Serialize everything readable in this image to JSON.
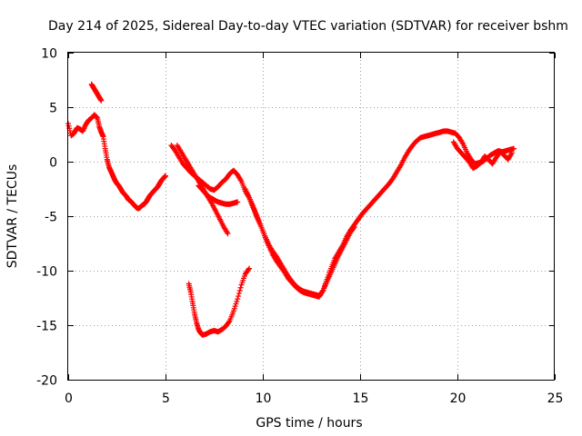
{
  "chart_data": {
    "type": "scatter",
    "title": "Day 214 of 2025, Sidereal Day-to-day VTEC variation (SDTVAR) for receiver bshm",
    "xlabel": "GPS time / hours",
    "ylabel": "SDTVAR / TECUs",
    "xlim": [
      0,
      25
    ],
    "ylim": [
      -20,
      10
    ],
    "xticks": [
      "0",
      "5",
      "10",
      "15",
      "20",
      "25"
    ],
    "yticks": [
      "10",
      "5",
      "0",
      "-5",
      "-10",
      "-15",
      "-20"
    ],
    "grid": true,
    "marker": "+",
    "series": [
      {
        "name": "SDTVAR",
        "color": "#ff0000",
        "tracks": [
          {
            "x": [
              0.0,
              0.15,
              0.3,
              0.45,
              0.6,
              0.75,
              0.9,
              1.05,
              1.2,
              1.35,
              1.5,
              1.6,
              1.7,
              1.8,
              1.9,
              2.0,
              2.1,
              2.2,
              2.3,
              2.4,
              2.5,
              2.6,
              2.7,
              2.8,
              2.9,
              3.0,
              3.1,
              3.2,
              3.3,
              3.4,
              3.5,
              3.6,
              3.7,
              3.8,
              3.9,
              4.0,
              4.1,
              4.2,
              4.3,
              4.4,
              4.5,
              4.6,
              4.7,
              4.8,
              4.9,
              5.0
            ],
            "y": [
              3.5,
              2.4,
              2.6,
              3.1,
              3.0,
              2.8,
              3.4,
              3.8,
              4.0,
              4.3,
              4.0,
              3.2,
              2.7,
              2.3,
              1.2,
              0.2,
              -0.5,
              -0.9,
              -1.3,
              -1.7,
              -2.0,
              -2.2,
              -2.5,
              -2.8,
              -3.0,
              -3.2,
              -3.5,
              -3.6,
              -3.8,
              -4.0,
              -4.2,
              -4.3,
              -4.2,
              -4.0,
              -3.9,
              -3.7,
              -3.4,
              -3.1,
              -2.9,
              -2.7,
              -2.5,
              -2.3,
              -2.0,
              -1.7,
              -1.5,
              -1.3
            ]
          },
          {
            "x": [
              1.2,
              1.3,
              1.4,
              1.5,
              1.6,
              1.7
            ],
            "y": [
              7.1,
              6.8,
              6.5,
              6.2,
              5.9,
              5.6
            ]
          },
          {
            "x": [
              5.3,
              5.5,
              5.7,
              5.9,
              6.1,
              6.3,
              6.5,
              6.7,
              6.9,
              7.1,
              7.3,
              7.5,
              7.7,
              7.9,
              8.1,
              8.3,
              8.5,
              8.7,
              8.9,
              9.1,
              9.3,
              9.5,
              9.7,
              9.9,
              10.1,
              10.3,
              10.5,
              10.7,
              10.9,
              11.1,
              11.3,
              11.5,
              11.7,
              11.9,
              12.1,
              12.3,
              12.5,
              12.7,
              12.9,
              13.1,
              13.3,
              13.5,
              13.7,
              13.9,
              14.1,
              14.3,
              14.5,
              14.7,
              14.9,
              15.1,
              15.3,
              15.5,
              15.7,
              15.9,
              16.1,
              16.3,
              16.5,
              16.7,
              16.9,
              17.1,
              17.3,
              17.5,
              17.7,
              17.9,
              18.1,
              18.3,
              18.5,
              18.7,
              18.9,
              19.1,
              19.3,
              19.5,
              19.7,
              19.9,
              20.1,
              20.3,
              20.5,
              20.7,
              20.9,
              21.1,
              21.3,
              21.5,
              21.7,
              21.9,
              22.1,
              22.3,
              22.5,
              22.7,
              22.9
            ],
            "y": [
              1.5,
              1.0,
              0.4,
              -0.2,
              -0.6,
              -1.0,
              -1.3,
              -1.6,
              -1.9,
              -2.2,
              -2.5,
              -2.6,
              -2.3,
              -1.9,
              -1.6,
              -1.1,
              -0.8,
              -1.2,
              -1.8,
              -2.7,
              -3.3,
              -4.1,
              -5.0,
              -5.9,
              -6.8,
              -7.7,
              -8.5,
              -9.1,
              -9.6,
              -10.1,
              -10.7,
              -11.1,
              -11.5,
              -11.8,
              -12.0,
              -12.1,
              -12.2,
              -12.3,
              -12.4,
              -11.8,
              -10.8,
              -9.8,
              -8.9,
              -8.3,
              -7.7,
              -6.9,
              -6.3,
              -5.8,
              -5.3,
              -4.8,
              -4.4,
              -4.0,
              -3.6,
              -3.2,
              -2.8,
              -2.4,
              -2.0,
              -1.5,
              -0.9,
              -0.3,
              0.4,
              1.0,
              1.5,
              1.9,
              2.2,
              2.3,
              2.4,
              2.5,
              2.6,
              2.7,
              2.8,
              2.8,
              2.7,
              2.6,
              2.2,
              1.6,
              0.8,
              0.2,
              -0.2,
              -0.1,
              0.0,
              0.3,
              0.6,
              0.8,
              1.0,
              0.9,
              1.0,
              1.1,
              1.2
            ]
          },
          {
            "x": [
              5.6,
              5.8,
              6.0,
              6.2,
              6.4,
              6.6,
              6.8,
              7.0,
              7.2,
              7.4,
              7.6,
              7.8,
              8.0,
              8.2
            ],
            "y": [
              1.5,
              0.9,
              0.3,
              -0.3,
              -0.9,
              -1.5,
              -2.1,
              -2.7,
              -3.3,
              -3.9,
              -4.6,
              -5.3,
              -6.0,
              -6.6
            ]
          },
          {
            "x": [
              6.7,
              6.9,
              7.1,
              7.3,
              7.5,
              7.7,
              7.9,
              8.1,
              8.3,
              8.5,
              8.7
            ],
            "y": [
              -2.2,
              -2.6,
              -3.0,
              -3.3,
              -3.5,
              -3.7,
              -3.8,
              -3.9,
              -3.9,
              -3.8,
              -3.7
            ]
          },
          {
            "x": [
              9.1,
              9.3,
              9.5,
              9.7,
              9.9,
              10.1,
              10.3,
              10.5,
              10.7,
              10.9,
              11.1,
              11.3,
              11.5,
              11.7,
              11.9,
              12.1,
              12.3,
              12.5,
              12.7,
              12.9,
              13.1,
              13.3,
              13.5,
              13.7,
              13.9,
              14.1,
              14.3,
              14.5,
              14.7
            ],
            "y": [
              -2.5,
              -3.3,
              -4.2,
              -5.1,
              -5.9,
              -6.8,
              -7.6,
              -8.2,
              -8.7,
              -9.3,
              -9.9,
              -10.5,
              -11.0,
              -11.4,
              -11.7,
              -11.9,
              -12.0,
              -12.1,
              -12.2,
              -12.3,
              -11.8,
              -11.0,
              -10.2,
              -9.4,
              -8.6,
              -7.9,
              -7.2,
              -6.5,
              -6.0
            ]
          },
          {
            "x": [
              6.2,
              6.3,
              6.4,
              6.5,
              6.6,
              6.7,
              6.8,
              6.9,
              7.1,
              7.3,
              7.5,
              7.7,
              7.9,
              8.1,
              8.3,
              8.5,
              8.7,
              8.9,
              9.1,
              9.3
            ],
            "y": [
              -11.2,
              -12.0,
              -13.0,
              -14.0,
              -14.8,
              -15.4,
              -15.7,
              -15.9,
              -15.8,
              -15.6,
              -15.5,
              -15.6,
              -15.4,
              -15.1,
              -14.6,
              -13.7,
              -12.6,
              -11.3,
              -10.3,
              -9.8
            ]
          },
          {
            "x": [
              19.8,
              20.0,
              20.2,
              20.4,
              20.6,
              20.8,
              21.0,
              21.2,
              21.4,
              21.6,
              21.8,
              22.0,
              22.2,
              22.4,
              22.6,
              22.8
            ],
            "y": [
              1.8,
              1.2,
              0.8,
              0.4,
              0.0,
              -0.6,
              -0.4,
              -0.1,
              0.5,
              0.2,
              -0.2,
              0.4,
              0.9,
              0.6,
              0.2,
              0.8
            ]
          }
        ]
      }
    ]
  }
}
